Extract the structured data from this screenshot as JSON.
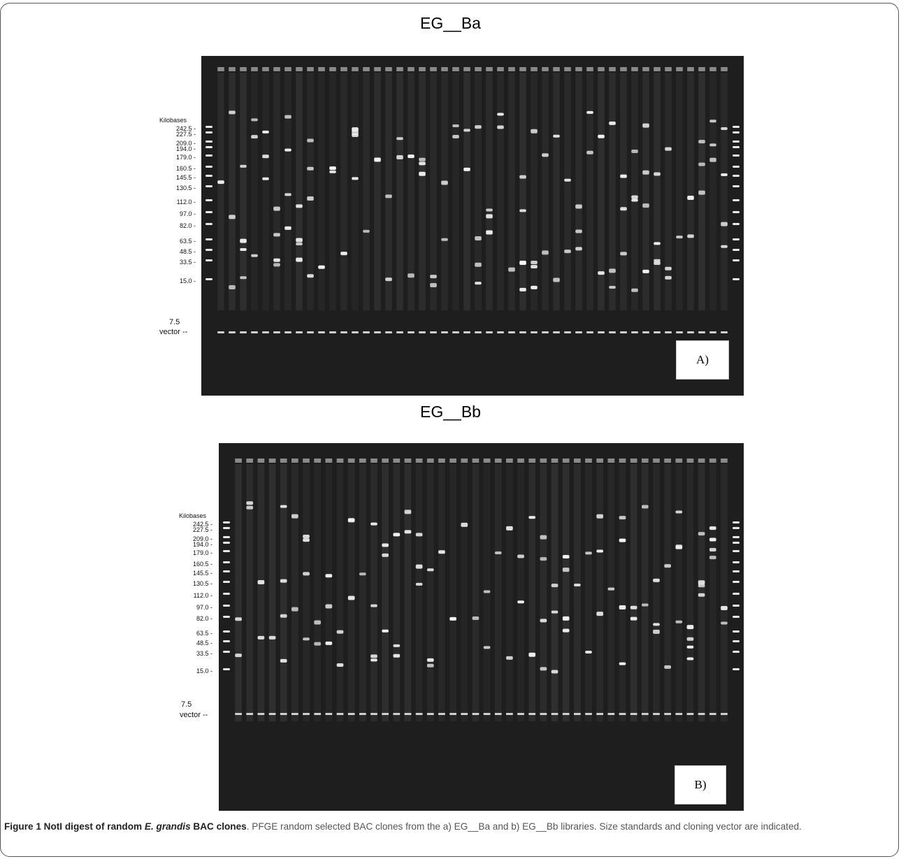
{
  "figure": {
    "panel_a_title": "EG__Ba",
    "panel_b_title": "EG__Bb",
    "panel_a_label": "A)",
    "panel_b_label": "B)",
    "ladder_heading": "Kilobases",
    "ladder_marks": [
      "242.5 -",
      "227.5 -",
      "209.0 -",
      "194.0 -",
      "179.0 -",
      "160.5 -",
      "145.5 -",
      "130.5 -",
      "112.0 -",
      "97.0 -",
      "82.0 -",
      "63.5 -",
      "48.5 -",
      "33.5 -",
      "15.0 -"
    ],
    "marker_7_5": "7.5",
    "vector_label": "vector --"
  },
  "caption": {
    "label": "Figure 1",
    "title_pre": "NotI digest of random ",
    "title_species": "E. grandis",
    "title_post": " BAC clones",
    "text": ". PFGE random selected BAC clones from the a) EG__Ba and b) EG__Bb libraries. Size standards and cloning vector are indicated."
  },
  "colors": {
    "gel_background": "#1b1b1b",
    "band": "#f4f4f4",
    "caption_text": "#555555",
    "frame_border": "#555555"
  }
}
